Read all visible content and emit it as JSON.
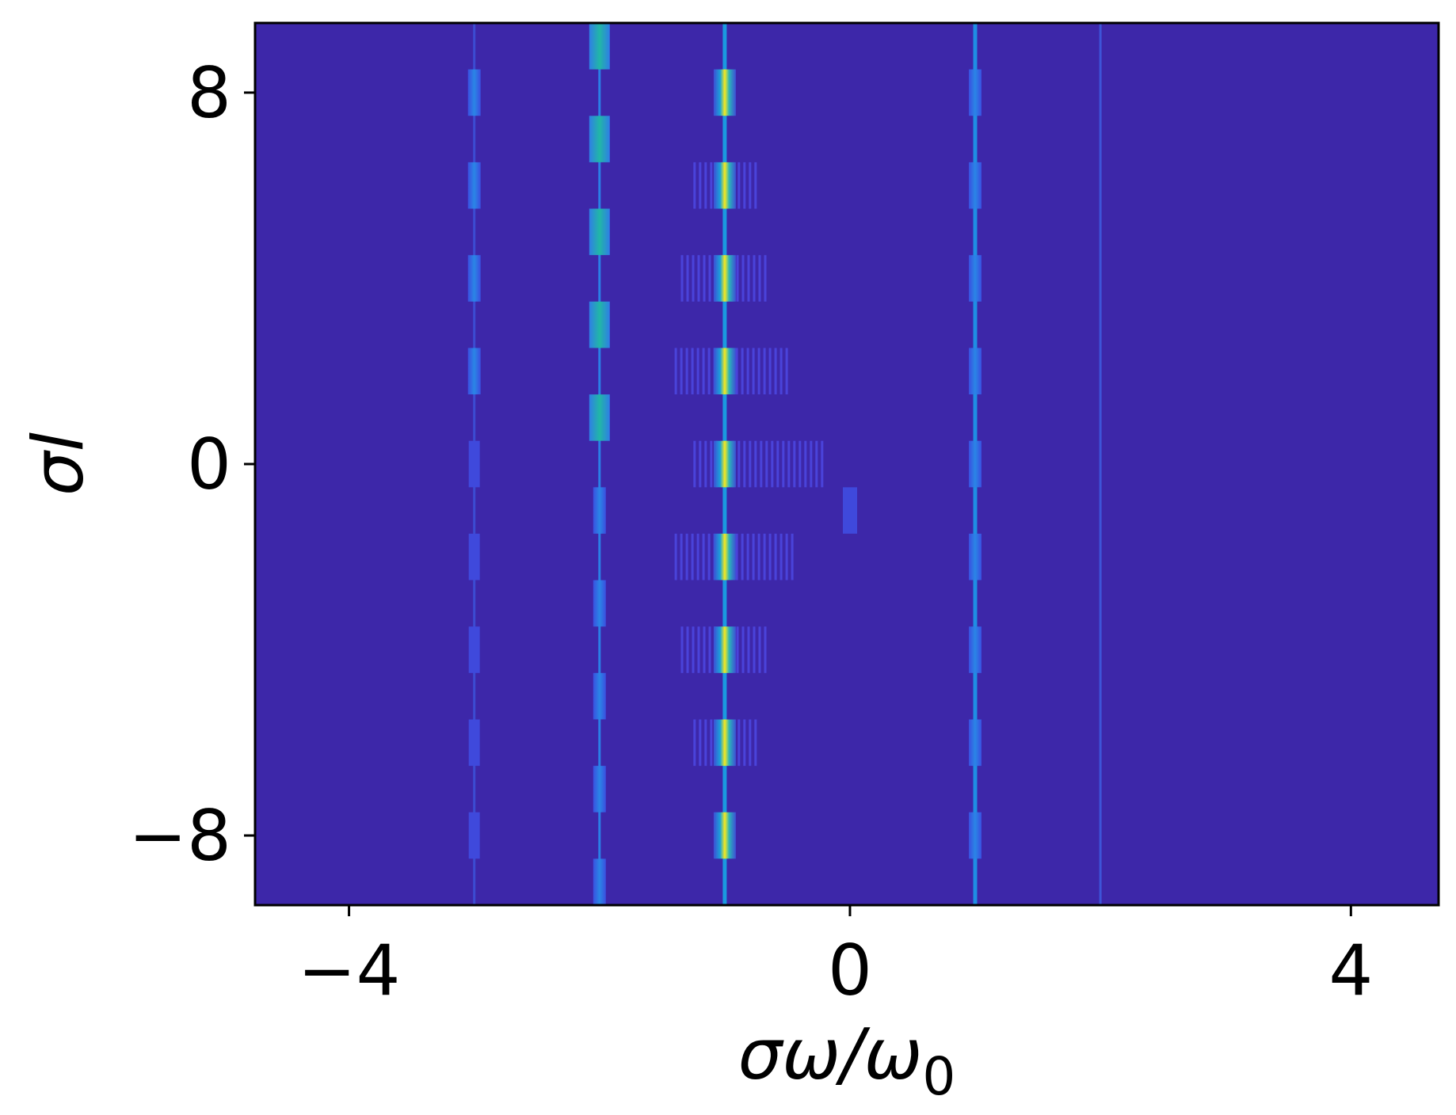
{
  "chart_data": {
    "type": "heatmap",
    "title": "",
    "xlabel": "σω/ω",
    "xlabel_sub": "0",
    "ylabel": "σl",
    "xlim": [
      -4.75,
      4.7
    ],
    "ylim": [
      -9.5,
      9.5
    ],
    "xticks": [
      {
        "value": -4,
        "label": "−4"
      },
      {
        "value": 0,
        "label": "0"
      },
      {
        "value": 4,
        "label": "4"
      }
    ],
    "yticks": [
      {
        "value": 8,
        "label": "8"
      },
      {
        "value": 0,
        "label": "0"
      },
      {
        "value": -8,
        "label": "−8"
      }
    ],
    "colormap": "parula",
    "background_color": "#3d27a9",
    "grid": false,
    "legend": "none",
    "traces": [
      {
        "x": -3.0,
        "color": "#3c4cd2",
        "note": "faint continuous line"
      },
      {
        "x": -2.0,
        "color": "#2a80e6",
        "note": "thin continuous line"
      },
      {
        "x": -1.0,
        "color": "#1a9ae0",
        "note": "continuous line"
      },
      {
        "x": 1.0,
        "color": "#1f8ee4",
        "note": "continuous line"
      },
      {
        "x": 2.0,
        "color": "#3e54d8",
        "note": "faint continuous line"
      }
    ],
    "segments": [
      {
        "x": -3.0,
        "l": [
          8,
          6,
          4,
          2
        ],
        "intensity": 0.45
      },
      {
        "x": -3.0,
        "l": [
          0,
          -2,
          -4,
          -6,
          -8
        ],
        "intensity": 0.3
      },
      {
        "x": -2.0,
        "l": [
          9,
          7,
          5,
          3,
          1
        ],
        "intensity": 0.65
      },
      {
        "x": -2.0,
        "l": [
          -1,
          -3,
          -5,
          -7,
          -9
        ],
        "intensity": 0.5
      },
      {
        "x": -1.0,
        "l": [
          8,
          6,
          4,
          2,
          0,
          -2,
          -4,
          -6,
          -8
        ],
        "intensity": 1.0
      },
      {
        "x": 0.0,
        "l": [
          -1
        ],
        "intensity": 0.3
      },
      {
        "x": 1.0,
        "l": [
          8,
          6,
          4,
          2,
          0,
          -2,
          -4,
          -6,
          -8
        ],
        "intensity": 0.4
      }
    ],
    "harmonic_bands": [
      {
        "l": 6,
        "x_from": -1.25,
        "x_to": -0.75
      },
      {
        "l": 4,
        "x_from": -1.35,
        "x_to": -0.65
      },
      {
        "l": 2,
        "x_from": -1.4,
        "x_to": -0.5
      },
      {
        "l": 0,
        "x_from": -1.25,
        "x_to": -0.2
      },
      {
        "l": -2,
        "x_from": -1.4,
        "x_to": -0.45
      },
      {
        "l": -4,
        "x_from": -1.35,
        "x_to": -0.65
      },
      {
        "l": -6,
        "x_from": -1.25,
        "x_to": -0.75
      }
    ]
  }
}
